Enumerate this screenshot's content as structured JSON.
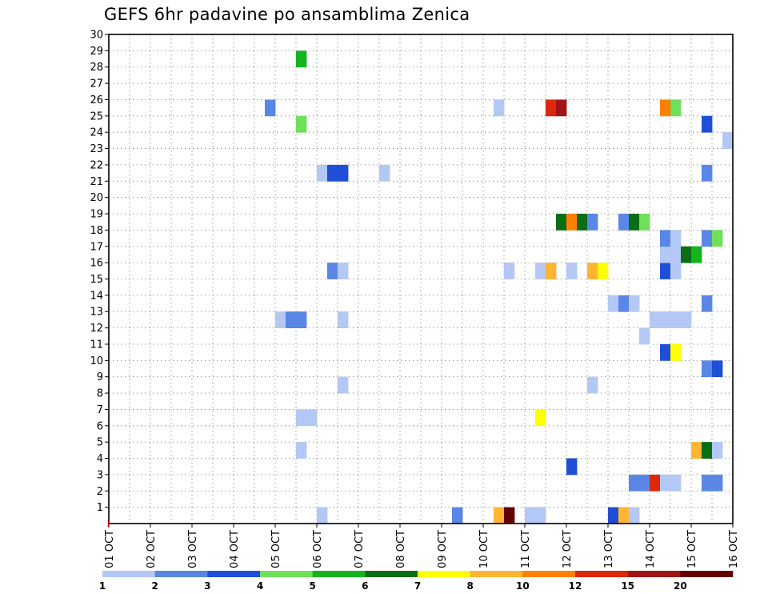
{
  "chart_data": {
    "type": "heatmap",
    "title": "GEFS 6hr padavine po ansamblima Zenica",
    "xlabel": "",
    "ylabel": "",
    "x_ticks": [
      "01 OCT",
      "02 OCT",
      "03 OCT",
      "04 OCT",
      "05 OCT",
      "06 OCT",
      "07 OCT",
      "08 OCT",
      "09 OCT",
      "10 OCT",
      "11 OCT",
      "12 OCT",
      "13 OCT",
      "14 OCT",
      "15 OCT",
      "16 OCT"
    ],
    "xlim_days": [
      1,
      16
    ],
    "y_ticks": [
      1,
      2,
      3,
      4,
      5,
      6,
      7,
      8,
      9,
      10,
      11,
      12,
      13,
      14,
      15,
      16,
      17,
      18,
      19,
      20,
      21,
      22,
      23,
      24,
      25,
      26,
      27,
      28,
      29,
      30
    ],
    "ylim": [
      0,
      30
    ],
    "grid": true,
    "legend": {
      "placement": "bottom",
      "labels": [
        "1",
        "2",
        "3",
        "4",
        "5",
        "6",
        "7",
        "8",
        "10",
        "12",
        "15",
        "20"
      ],
      "colors": [
        "#b4c8f5",
        "#5a87e6",
        "#1f4fd6",
        "#6fe05a",
        "#14b41e",
        "#0a6e14",
        "#ffff00",
        "#ffb432",
        "#ff7f00",
        "#dc280a",
        "#a01414",
        "#640000"
      ]
    },
    "cells": [
      {
        "member": 0,
        "day": 6.125,
        "cls": 0
      },
      {
        "member": 0,
        "day": 9.375,
        "cls": 1
      },
      {
        "member": 0,
        "day": 10.375,
        "cls": 7
      },
      {
        "member": 0,
        "day": 10.625,
        "cls": 11
      },
      {
        "member": 0,
        "day": 11.125,
        "cls": 0
      },
      {
        "member": 0,
        "day": 11.375,
        "cls": 0
      },
      {
        "member": 0,
        "day": 13.125,
        "cls": 2
      },
      {
        "member": 0,
        "day": 13.375,
        "cls": 7
      },
      {
        "member": 0,
        "day": 13.625,
        "cls": 0
      },
      {
        "member": 2,
        "day": 13.625,
        "cls": 1
      },
      {
        "member": 2,
        "day": 13.875,
        "cls": 1
      },
      {
        "member": 2,
        "day": 14.125,
        "cls": 9
      },
      {
        "member": 2,
        "day": 14.375,
        "cls": 0
      },
      {
        "member": 2,
        "day": 14.625,
        "cls": 0
      },
      {
        "member": 2,
        "day": 15.375,
        "cls": 1
      },
      {
        "member": 2,
        "day": 15.625,
        "cls": 1
      },
      {
        "member": 3,
        "day": 12.125,
        "cls": 2
      },
      {
        "member": 4,
        "day": 5.625,
        "cls": 0
      },
      {
        "member": 4,
        "day": 15.125,
        "cls": 7
      },
      {
        "member": 4,
        "day": 15.375,
        "cls": 5
      },
      {
        "member": 4,
        "day": 15.625,
        "cls": 0
      },
      {
        "member": 6,
        "day": 5.625,
        "cls": 0
      },
      {
        "member": 6,
        "day": 5.875,
        "cls": 0
      },
      {
        "member": 6,
        "day": 11.375,
        "cls": 6
      },
      {
        "member": 8,
        "day": 6.625,
        "cls": 0
      },
      {
        "member": 8,
        "day": 12.625,
        "cls": 0
      },
      {
        "member": 9,
        "day": 15.375,
        "cls": 1
      },
      {
        "member": 9,
        "day": 15.625,
        "cls": 2
      },
      {
        "member": 10,
        "day": 14.375,
        "cls": 2
      },
      {
        "member": 10,
        "day": 14.625,
        "cls": 6
      },
      {
        "member": 11,
        "day": 13.875,
        "cls": 0
      },
      {
        "member": 12,
        "day": 5.125,
        "cls": 0
      },
      {
        "member": 12,
        "day": 5.375,
        "cls": 1
      },
      {
        "member": 12,
        "day": 5.625,
        "cls": 1
      },
      {
        "member": 12,
        "day": 6.625,
        "cls": 0
      },
      {
        "member": 12,
        "day": 14.125,
        "cls": 0
      },
      {
        "member": 12,
        "day": 14.375,
        "cls": 0
      },
      {
        "member": 12,
        "day": 14.625,
        "cls": 0
      },
      {
        "member": 12,
        "day": 14.875,
        "cls": 0
      },
      {
        "member": 13,
        "day": 13.125,
        "cls": 0
      },
      {
        "member": 13,
        "day": 13.375,
        "cls": 1
      },
      {
        "member": 13,
        "day": 13.625,
        "cls": 0
      },
      {
        "member": 13,
        "day": 15.375,
        "cls": 1
      },
      {
        "member": 15,
        "day": 6.375,
        "cls": 1
      },
      {
        "member": 15,
        "day": 6.625,
        "cls": 0
      },
      {
        "member": 15,
        "day": 10.625,
        "cls": 0
      },
      {
        "member": 15,
        "day": 11.375,
        "cls": 0
      },
      {
        "member": 15,
        "day": 11.625,
        "cls": 7
      },
      {
        "member": 15,
        "day": 12.125,
        "cls": 0
      },
      {
        "member": 15,
        "day": 12.625,
        "cls": 7
      },
      {
        "member": 15,
        "day": 12.875,
        "cls": 6
      },
      {
        "member": 15,
        "day": 14.375,
        "cls": 2
      },
      {
        "member": 15,
        "day": 14.625,
        "cls": 0
      },
      {
        "member": 16,
        "day": 14.375,
        "cls": 0
      },
      {
        "member": 16,
        "day": 14.625,
        "cls": 0
      },
      {
        "member": 16,
        "day": 14.875,
        "cls": 5
      },
      {
        "member": 16,
        "day": 15.125,
        "cls": 4
      },
      {
        "member": 17,
        "day": 14.375,
        "cls": 1
      },
      {
        "member": 17,
        "day": 14.625,
        "cls": 0
      },
      {
        "member": 17,
        "day": 15.375,
        "cls": 1
      },
      {
        "member": 17,
        "day": 15.625,
        "cls": 3
      },
      {
        "member": 18,
        "day": 11.875,
        "cls": 5
      },
      {
        "member": 18,
        "day": 12.125,
        "cls": 8
      },
      {
        "member": 18,
        "day": 12.375,
        "cls": 5
      },
      {
        "member": 18,
        "day": 12.625,
        "cls": 1
      },
      {
        "member": 18,
        "day": 13.375,
        "cls": 1
      },
      {
        "member": 18,
        "day": 13.625,
        "cls": 5
      },
      {
        "member": 18,
        "day": 13.875,
        "cls": 3
      },
      {
        "member": 21,
        "day": 6.125,
        "cls": 0
      },
      {
        "member": 21,
        "day": 6.375,
        "cls": 2
      },
      {
        "member": 21,
        "day": 6.625,
        "cls": 2
      },
      {
        "member": 21,
        "day": 7.625,
        "cls": 0
      },
      {
        "member": 21,
        "day": 15.375,
        "cls": 1
      },
      {
        "member": 23,
        "day": 15.875,
        "cls": 0
      },
      {
        "member": 24,
        "day": 5.625,
        "cls": 3
      },
      {
        "member": 24,
        "day": 15.375,
        "cls": 2
      },
      {
        "member": 25,
        "day": 4.875,
        "cls": 1
      },
      {
        "member": 25,
        "day": 10.375,
        "cls": 0
      },
      {
        "member": 25,
        "day": 11.625,
        "cls": 9
      },
      {
        "member": 25,
        "day": 11.875,
        "cls": 10
      },
      {
        "member": 25,
        "day": 14.375,
        "cls": 8
      },
      {
        "member": 25,
        "day": 14.625,
        "cls": 3
      },
      {
        "member": 28,
        "day": 5.625,
        "cls": 4
      }
    ]
  }
}
